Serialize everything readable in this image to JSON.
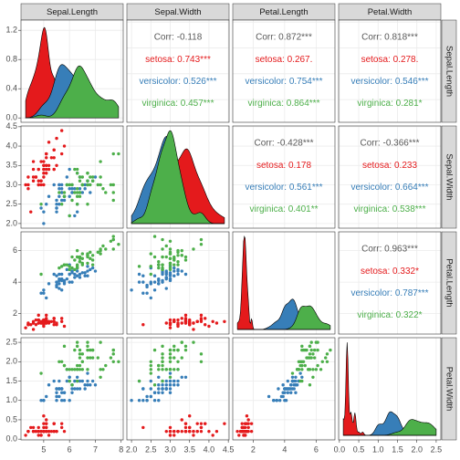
{
  "chart_data": {
    "type": "pairs",
    "variables": [
      "Sepal.Length",
      "Sepal.Width",
      "Petal.Length",
      "Petal.Width"
    ],
    "axes": [
      {
        "lim": [
          4.12,
          8.08
        ],
        "ticks": [
          5,
          6,
          7,
          8
        ]
      },
      {
        "lim": [
          1.88,
          4.52
        ],
        "ticks": [
          {
            "value": 2,
            "label": "2.0"
          },
          {
            "value": 2.5,
            "label": "2.5"
          },
          {
            "value": 3,
            "label": "3.0"
          },
          {
            "value": 3.5,
            "label": "3.5"
          },
          {
            "value": 4,
            "label": "4.0"
          },
          {
            "value": 4.5,
            "label": "4.5"
          }
        ]
      },
      {
        "lim": [
          0.705,
          7.195
        ],
        "ticks": [
          2,
          4,
          6
        ]
      },
      {
        "lim": [
          -0.02,
          2.62
        ],
        "ticks": [
          {
            "value": 0,
            "label": "0.0"
          },
          {
            "value": 0.5,
            "label": "0.5"
          },
          {
            "value": 1,
            "label": "1.0"
          },
          {
            "value": 1.5,
            "label": "1.5"
          },
          {
            "value": 2,
            "label": "2.0"
          },
          {
            "value": 2.5,
            "label": "2.5"
          }
        ]
      }
    ],
    "density": {
      "lim": [
        -0.06,
        1.34
      ],
      "ticks": [
        {
          "value": 0,
          "label": "0.0"
        },
        {
          "value": 0.4,
          "label": "0.4"
        },
        {
          "value": 0.8,
          "label": "0.8"
        },
        {
          "value": 1.2,
          "label": "1.2"
        }
      ]
    },
    "correlations": [
      [
        "Corr: -0.118",
        "setosa: 0.743***",
        "versicolor: 0.526***",
        "virginica: 0.457***"
      ],
      [
        "Corr: 0.872***",
        "setosa: 0.267.",
        "versicolor: 0.754***",
        "virginica: 0.864***"
      ],
      [
        "Corr: 0.818***",
        "setosa: 0.278.",
        "versicolor: 0.546***",
        "virginica: 0.281*"
      ],
      [
        "Corr: -0.428***",
        "setosa: 0.178",
        "versicolor: 0.561***",
        "virginica: 0.401**"
      ],
      [
        "Corr: -0.366***",
        "setosa: 0.233",
        "versicolor: 0.664***",
        "virginica: 0.538***"
      ],
      [
        "Corr: 0.963***",
        "setosa: 0.332*",
        "versicolor: 0.787***",
        "virginica: 0.322*"
      ]
    ],
    "corr_color": "#595959",
    "series": [
      {
        "name": "setosa",
        "color": "#E41A1C",
        "values": [
          [
            5.1,
            3.5,
            1.4,
            0.2
          ],
          [
            4.9,
            3.0,
            1.4,
            0.2
          ],
          [
            4.7,
            3.2,
            1.3,
            0.2
          ],
          [
            4.6,
            3.1,
            1.5,
            0.2
          ],
          [
            5.0,
            3.6,
            1.4,
            0.2
          ],
          [
            5.4,
            3.9,
            1.7,
            0.4
          ],
          [
            4.6,
            3.4,
            1.4,
            0.3
          ],
          [
            5.0,
            3.4,
            1.5,
            0.2
          ],
          [
            4.4,
            2.9,
            1.4,
            0.2
          ],
          [
            4.9,
            3.1,
            1.5,
            0.1
          ],
          [
            5.4,
            3.7,
            1.5,
            0.2
          ],
          [
            4.8,
            3.4,
            1.6,
            0.2
          ],
          [
            4.8,
            3.0,
            1.4,
            0.1
          ],
          [
            4.3,
            3.0,
            1.1,
            0.1
          ],
          [
            5.8,
            4.0,
            1.2,
            0.2
          ],
          [
            5.7,
            4.4,
            1.5,
            0.4
          ],
          [
            5.4,
            3.9,
            1.3,
            0.4
          ],
          [
            5.1,
            3.5,
            1.4,
            0.3
          ],
          [
            5.7,
            3.8,
            1.7,
            0.3
          ],
          [
            5.1,
            3.8,
            1.5,
            0.3
          ],
          [
            5.4,
            3.4,
            1.7,
            0.2
          ],
          [
            5.1,
            3.7,
            1.5,
            0.4
          ],
          [
            4.6,
            3.6,
            1.0,
            0.2
          ],
          [
            5.1,
            3.3,
            1.7,
            0.5
          ],
          [
            4.8,
            3.4,
            1.9,
            0.2
          ],
          [
            5.0,
            3.0,
            1.6,
            0.2
          ],
          [
            5.0,
            3.4,
            1.6,
            0.4
          ],
          [
            5.2,
            3.5,
            1.5,
            0.2
          ],
          [
            5.2,
            3.4,
            1.4,
            0.2
          ],
          [
            4.7,
            3.2,
            1.6,
            0.2
          ],
          [
            4.8,
            3.1,
            1.6,
            0.2
          ],
          [
            5.4,
            3.4,
            1.5,
            0.4
          ],
          [
            5.2,
            4.1,
            1.5,
            0.1
          ],
          [
            5.5,
            4.2,
            1.4,
            0.2
          ],
          [
            4.9,
            3.1,
            1.5,
            0.2
          ],
          [
            5.0,
            3.2,
            1.2,
            0.2
          ],
          [
            5.5,
            3.5,
            1.3,
            0.2
          ],
          [
            4.9,
            3.6,
            1.4,
            0.1
          ],
          [
            4.4,
            3.0,
            1.3,
            0.2
          ],
          [
            5.1,
            3.4,
            1.5,
            0.2
          ],
          [
            5.0,
            3.5,
            1.3,
            0.3
          ],
          [
            4.5,
            2.3,
            1.3,
            0.3
          ],
          [
            4.4,
            3.2,
            1.3,
            0.2
          ],
          [
            5.0,
            3.5,
            1.6,
            0.6
          ],
          [
            5.1,
            3.8,
            1.9,
            0.4
          ],
          [
            4.8,
            3.0,
            1.4,
            0.3
          ],
          [
            5.1,
            3.8,
            1.6,
            0.2
          ],
          [
            4.6,
            3.2,
            1.4,
            0.2
          ],
          [
            5.3,
            3.7,
            1.5,
            0.2
          ],
          [
            5.0,
            3.3,
            1.4,
            0.2
          ]
        ]
      },
      {
        "name": "versicolor",
        "color": "#377EB8",
        "values": [
          [
            7.0,
            3.2,
            4.7,
            1.4
          ],
          [
            6.4,
            3.2,
            4.5,
            1.5
          ],
          [
            6.9,
            3.1,
            4.9,
            1.5
          ],
          [
            5.5,
            2.3,
            4.0,
            1.3
          ],
          [
            6.5,
            2.8,
            4.6,
            1.5
          ],
          [
            5.7,
            2.8,
            4.5,
            1.3
          ],
          [
            6.3,
            3.3,
            4.7,
            1.6
          ],
          [
            4.9,
            2.4,
            3.3,
            1.0
          ],
          [
            6.6,
            2.9,
            4.6,
            1.3
          ],
          [
            5.2,
            2.7,
            3.9,
            1.4
          ],
          [
            5.0,
            2.0,
            3.5,
            1.0
          ],
          [
            5.9,
            3.0,
            4.2,
            1.5
          ],
          [
            6.0,
            2.2,
            4.0,
            1.0
          ],
          [
            6.1,
            2.9,
            4.7,
            1.4
          ],
          [
            5.6,
            2.9,
            3.6,
            1.3
          ],
          [
            6.7,
            3.1,
            4.4,
            1.4
          ],
          [
            5.6,
            3.0,
            4.5,
            1.5
          ],
          [
            5.8,
            2.7,
            4.1,
            1.0
          ],
          [
            6.2,
            2.2,
            4.5,
            1.5
          ],
          [
            5.6,
            2.5,
            3.9,
            1.1
          ],
          [
            5.9,
            3.2,
            4.8,
            1.8
          ],
          [
            6.1,
            2.8,
            4.0,
            1.3
          ],
          [
            6.3,
            2.5,
            4.9,
            1.5
          ],
          [
            6.1,
            2.8,
            4.7,
            1.2
          ],
          [
            6.4,
            2.9,
            4.3,
            1.3
          ],
          [
            6.6,
            3.0,
            4.4,
            1.4
          ],
          [
            6.8,
            2.8,
            4.8,
            1.4
          ],
          [
            6.7,
            3.0,
            5.0,
            1.7
          ],
          [
            6.0,
            2.9,
            4.5,
            1.5
          ],
          [
            5.7,
            2.6,
            3.5,
            1.0
          ],
          [
            5.5,
            2.4,
            3.8,
            1.1
          ],
          [
            5.5,
            2.4,
            3.7,
            1.0
          ],
          [
            5.8,
            2.7,
            3.9,
            1.2
          ],
          [
            6.0,
            2.7,
            5.1,
            1.6
          ],
          [
            5.4,
            3.0,
            4.5,
            1.5
          ],
          [
            6.0,
            3.4,
            4.5,
            1.6
          ],
          [
            6.7,
            3.1,
            4.7,
            1.5
          ],
          [
            6.3,
            2.3,
            4.4,
            1.3
          ],
          [
            5.6,
            3.0,
            4.1,
            1.3
          ],
          [
            5.5,
            2.5,
            4.0,
            1.3
          ],
          [
            5.5,
            2.6,
            4.4,
            1.2
          ],
          [
            6.1,
            3.0,
            4.6,
            1.4
          ],
          [
            5.8,
            2.6,
            4.0,
            1.2
          ],
          [
            5.0,
            2.3,
            3.3,
            1.0
          ],
          [
            5.6,
            2.7,
            4.2,
            1.3
          ],
          [
            5.7,
            3.0,
            4.2,
            1.2
          ],
          [
            5.7,
            2.9,
            4.2,
            1.3
          ],
          [
            6.2,
            2.9,
            4.3,
            1.3
          ],
          [
            5.1,
            2.5,
            3.0,
            1.1
          ],
          [
            5.7,
            2.8,
            4.1,
            1.3
          ]
        ]
      },
      {
        "name": "virginica",
        "color": "#4DAF4A",
        "values": [
          [
            6.3,
            3.3,
            6.0,
            2.5
          ],
          [
            5.8,
            2.7,
            5.1,
            1.9
          ],
          [
            7.1,
            3.0,
            5.9,
            2.1
          ],
          [
            6.3,
            2.9,
            5.6,
            1.8
          ],
          [
            6.5,
            3.0,
            5.8,
            2.2
          ],
          [
            7.6,
            3.0,
            6.6,
            2.1
          ],
          [
            4.9,
            2.5,
            4.5,
            1.7
          ],
          [
            7.3,
            2.9,
            6.3,
            1.8
          ],
          [
            6.7,
            2.5,
            5.8,
            1.8
          ],
          [
            7.2,
            3.6,
            6.1,
            2.5
          ],
          [
            6.5,
            3.2,
            5.1,
            2.0
          ],
          [
            6.4,
            2.7,
            5.3,
            1.9
          ],
          [
            6.8,
            3.0,
            5.5,
            2.1
          ],
          [
            5.7,
            2.5,
            5.0,
            2.0
          ],
          [
            5.8,
            2.8,
            5.1,
            2.4
          ],
          [
            6.4,
            3.2,
            5.3,
            2.3
          ],
          [
            6.5,
            3.0,
            5.5,
            1.8
          ],
          [
            7.7,
            3.8,
            6.7,
            2.2
          ],
          [
            7.7,
            2.6,
            6.9,
            2.3
          ],
          [
            6.0,
            2.2,
            5.0,
            1.5
          ],
          [
            6.9,
            3.2,
            5.7,
            2.3
          ],
          [
            5.6,
            2.8,
            4.9,
            2.0
          ],
          [
            7.7,
            2.8,
            6.7,
            2.0
          ],
          [
            6.3,
            2.7,
            4.9,
            1.8
          ],
          [
            6.7,
            3.3,
            5.7,
            2.1
          ],
          [
            7.2,
            3.2,
            6.0,
            1.8
          ],
          [
            6.2,
            2.8,
            4.8,
            1.8
          ],
          [
            6.1,
            3.0,
            4.9,
            1.8
          ],
          [
            6.4,
            2.8,
            5.6,
            2.1
          ],
          [
            7.2,
            3.0,
            5.8,
            1.6
          ],
          [
            7.4,
            2.8,
            6.1,
            1.9
          ],
          [
            7.9,
            3.8,
            6.4,
            2.0
          ],
          [
            6.4,
            2.8,
            5.6,
            2.2
          ],
          [
            6.3,
            2.8,
            5.1,
            1.5
          ],
          [
            6.1,
            2.6,
            5.6,
            1.4
          ],
          [
            7.7,
            3.0,
            6.1,
            2.3
          ],
          [
            6.3,
            3.4,
            5.6,
            2.4
          ],
          [
            6.4,
            3.1,
            5.5,
            1.8
          ],
          [
            6.0,
            3.0,
            4.8,
            1.8
          ],
          [
            6.9,
            3.1,
            5.4,
            2.1
          ],
          [
            6.7,
            3.1,
            5.6,
            2.4
          ],
          [
            6.9,
            3.1,
            5.1,
            2.3
          ],
          [
            5.8,
            2.7,
            5.1,
            1.9
          ],
          [
            6.8,
            3.2,
            5.9,
            2.3
          ],
          [
            6.7,
            3.3,
            5.7,
            2.5
          ],
          [
            6.7,
            3.0,
            5.2,
            2.3
          ],
          [
            6.3,
            2.5,
            5.0,
            1.9
          ],
          [
            6.5,
            3.0,
            5.2,
            2.0
          ],
          [
            6.2,
            3.4,
            5.4,
            2.3
          ],
          [
            5.9,
            3.0,
            5.1,
            1.8
          ]
        ]
      }
    ],
    "grid": true
  }
}
